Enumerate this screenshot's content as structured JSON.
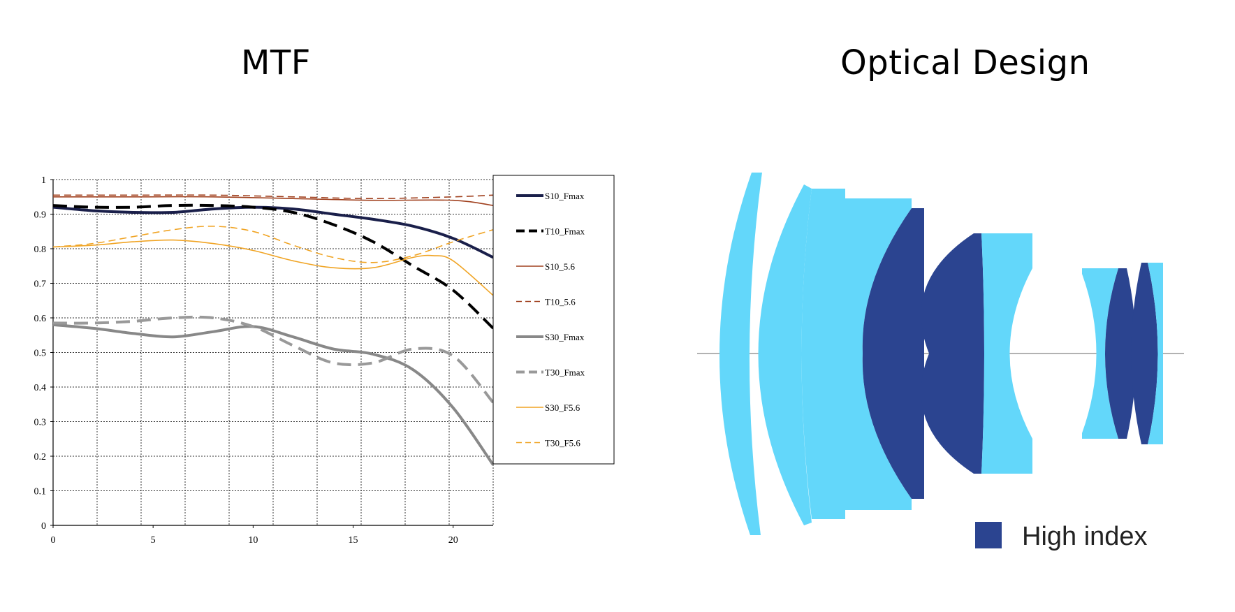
{
  "titles": {
    "mtf": "MTF",
    "optical": "Optical Design"
  },
  "chart_data": {
    "type": "line",
    "title": "MTF",
    "xlim": [
      0,
      22
    ],
    "ylim": [
      0,
      1
    ],
    "xticks": [
      0,
      5,
      10,
      15,
      20
    ],
    "yticks": [
      0,
      0.1,
      0.2,
      0.3,
      0.4,
      0.5,
      0.6,
      0.7,
      0.8,
      0.9,
      1
    ],
    "ytick_labels": [
      "0",
      "0.1",
      "0.2",
      "0.3",
      "0.4",
      "0.5",
      "0.6",
      "0.7",
      "0.8",
      "0.9",
      "1"
    ],
    "grid": true,
    "legend_position": "right",
    "series": [
      {
        "name": "S10_Fmax",
        "color": "#1a1f4a",
        "style": "solid",
        "weight": "heavy",
        "x": [
          0,
          2,
          4,
          6,
          8,
          10,
          12,
          14,
          16,
          18,
          20,
          22
        ],
        "y": [
          0.92,
          0.91,
          0.905,
          0.905,
          0.915,
          0.92,
          0.915,
          0.9,
          0.885,
          0.865,
          0.83,
          0.775
        ]
      },
      {
        "name": "T10_Fmax",
        "color": "#000000",
        "style": "dashed",
        "weight": "heavy",
        "x": [
          0,
          2,
          4,
          6,
          8,
          10,
          12,
          14,
          16,
          18,
          20,
          22
        ],
        "y": [
          0.925,
          0.92,
          0.92,
          0.925,
          0.925,
          0.92,
          0.905,
          0.87,
          0.82,
          0.75,
          0.68,
          0.57
        ]
      },
      {
        "name": "S10_5.6",
        "color": "#a0401e",
        "style": "solid",
        "weight": "thin",
        "x": [
          0,
          4,
          8,
          12,
          16,
          20,
          22
        ],
        "y": [
          0.95,
          0.95,
          0.95,
          0.945,
          0.94,
          0.94,
          0.925
        ]
      },
      {
        "name": "T10_5.6",
        "color": "#a0401e",
        "style": "dashed",
        "weight": "thin",
        "x": [
          0,
          4,
          8,
          12,
          16,
          20,
          22
        ],
        "y": [
          0.955,
          0.955,
          0.955,
          0.95,
          0.945,
          0.95,
          0.955
        ]
      },
      {
        "name": "S30_Fmax",
        "color": "#888888",
        "style": "solid",
        "weight": "heavy",
        "x": [
          0,
          2,
          4,
          6,
          8,
          10,
          12,
          14,
          16,
          18,
          20,
          22
        ],
        "y": [
          0.58,
          0.57,
          0.555,
          0.545,
          0.56,
          0.575,
          0.545,
          0.51,
          0.495,
          0.45,
          0.34,
          0.175
        ]
      },
      {
        "name": "T30_Fmax",
        "color": "#999999",
        "style": "dashed",
        "weight": "heavy",
        "x": [
          0,
          2,
          4,
          6,
          8,
          10,
          12,
          14,
          16,
          18,
          20,
          22
        ],
        "y": [
          0.585,
          0.585,
          0.59,
          0.6,
          0.6,
          0.575,
          0.52,
          0.47,
          0.47,
          0.51,
          0.49,
          0.355
        ]
      },
      {
        "name": "S30_F5.6",
        "color": "#f0a424",
        "style": "solid",
        "weight": "thin",
        "x": [
          0,
          2,
          4,
          6,
          8,
          10,
          12,
          14,
          16,
          18,
          19,
          20,
          22
        ],
        "y": [
          0.805,
          0.81,
          0.82,
          0.825,
          0.815,
          0.795,
          0.765,
          0.745,
          0.745,
          0.775,
          0.78,
          0.765,
          0.665
        ]
      },
      {
        "name": "T30_F5.6",
        "color": "#f0a424",
        "style": "dashed",
        "weight": "thin",
        "x": [
          0,
          2,
          4,
          6,
          8,
          10,
          12,
          14,
          16,
          18,
          20,
          22
        ],
        "y": [
          0.805,
          0.815,
          0.835,
          0.855,
          0.865,
          0.85,
          0.81,
          0.775,
          0.76,
          0.78,
          0.82,
          0.855
        ]
      }
    ]
  },
  "optical_design": {
    "colors": {
      "standard": "#63d7fa",
      "high_index": "#2b4490"
    },
    "elements_count": 11,
    "legend": {
      "label": "High index"
    }
  }
}
